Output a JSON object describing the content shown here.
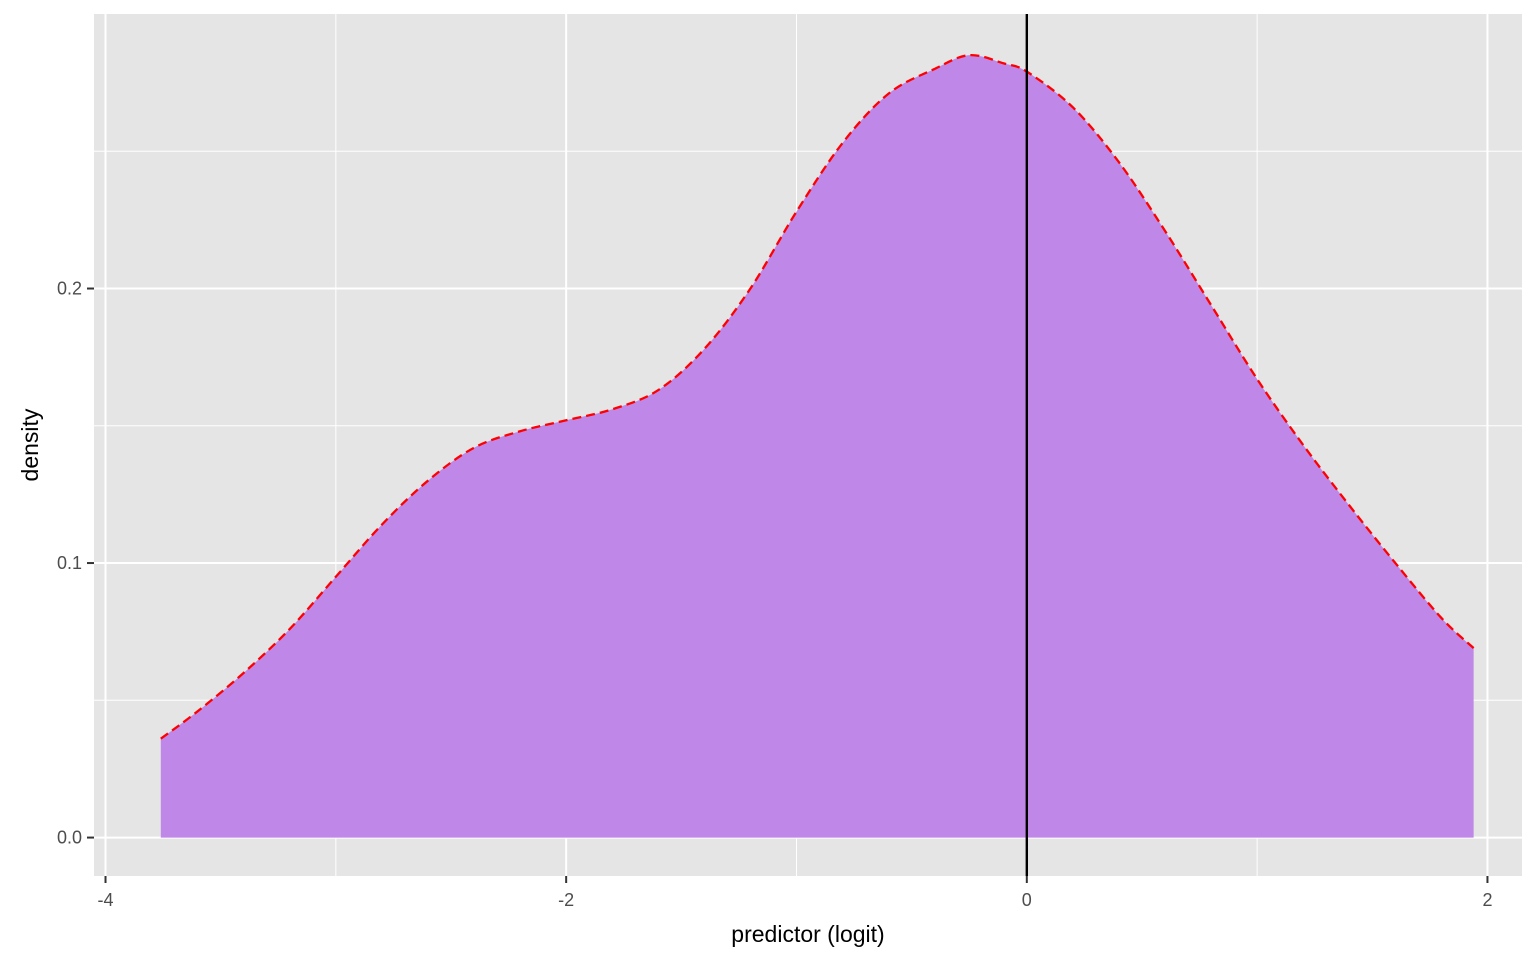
{
  "chart_data": {
    "type": "area",
    "title": "",
    "xlabel": "predictor (logit)",
    "ylabel": "density",
    "xlim": [
      -4.05,
      2.15
    ],
    "ylim": [
      -0.014,
      0.3
    ],
    "x_ticks": [
      -4,
      -2,
      0,
      2
    ],
    "x_tick_labels": [
      "-4",
      "-2",
      "0",
      "2"
    ],
    "x_minor_ticks": [
      -3,
      -1,
      1
    ],
    "y_ticks": [
      0.0,
      0.1,
      0.2
    ],
    "y_tick_labels": [
      "0.0",
      "0.1",
      "0.2"
    ],
    "y_minor_ticks": [
      0.05,
      0.15,
      0.25
    ],
    "grid": true,
    "legend": "none",
    "vline_x": 0,
    "colors": {
      "panel_background": "#e5e5e5",
      "grid": "#ffffff",
      "fill": "#bf88e8",
      "curve": "#ff0000",
      "vline": "#000000",
      "tick": "#333333"
    },
    "series": [
      {
        "x": [
          -3.76,
          -3.6,
          -3.4,
          -3.2,
          -3.0,
          -2.8,
          -2.6,
          -2.4,
          -2.2,
          -2.0,
          -1.8,
          -1.6,
          -1.4,
          -1.2,
          -1.0,
          -0.8,
          -0.6,
          -0.4,
          -0.25,
          -0.1,
          0.0,
          0.2,
          0.4,
          0.6,
          0.8,
          1.0,
          1.2,
          1.4,
          1.6,
          1.8,
          1.94
        ],
        "y": [
          0.036,
          0.046,
          0.06,
          0.076,
          0.095,
          0.114,
          0.13,
          0.142,
          0.148,
          0.152,
          0.156,
          0.163,
          0.178,
          0.2,
          0.228,
          0.253,
          0.271,
          0.28,
          0.285,
          0.282,
          0.279,
          0.266,
          0.246,
          0.221,
          0.194,
          0.167,
          0.143,
          0.121,
          0.1,
          0.08,
          0.069
        ]
      }
    ]
  }
}
